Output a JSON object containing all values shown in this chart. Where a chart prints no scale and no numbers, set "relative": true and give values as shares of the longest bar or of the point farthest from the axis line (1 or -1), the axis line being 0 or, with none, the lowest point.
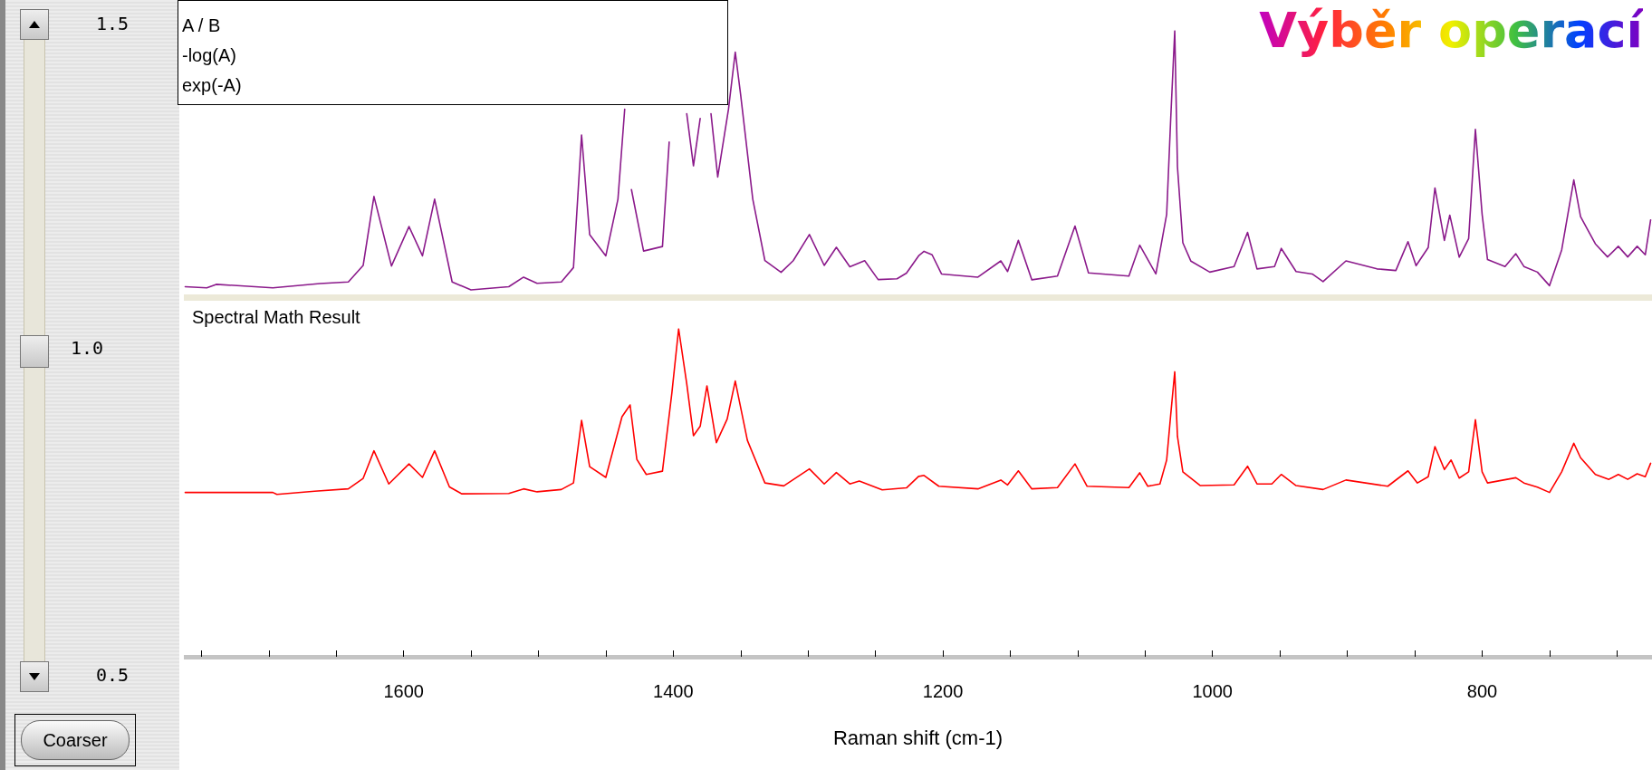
{
  "chart_data": [
    {
      "type": "line",
      "title": "Výběr operací",
      "annotations": [
        "A / B",
        "-log(A)",
        "exp(-A)",
        "1.5",
        "1.0",
        "0.5",
        "Coarser"
      ],
      "relative": true,
      "marker": "none",
      "xlim": [
        1763,
        674
      ],
      "tick_labels": false,
      "series": [
        {
          "color": "#8b1a8b",
          "x": [
            1762,
            1746,
            1739,
            1697,
            1662,
            1641,
            1630,
            1622,
            1609,
            1596,
            1586,
            1577,
            1564,
            1550,
            1522,
            1511,
            1501,
            1483,
            1474,
            1468,
            1462,
            1450,
            1441,
            1436,
            1434,
            1431,
            1422,
            1408,
            1403,
            1400,
            1390,
            1385,
            1380,
            1377,
            1372,
            1367,
            1359,
            1354,
            1350,
            1341,
            1332,
            1320,
            1311,
            1299,
            1288,
            1279,
            1269,
            1258,
            1248,
            1234,
            1227,
            1218,
            1214,
            1208,
            1201,
            1174,
            1157,
            1152,
            1144,
            1134,
            1115,
            1102,
            1092,
            1062,
            1054,
            1042,
            1034,
            1031,
            1028,
            1026,
            1022,
            1016,
            1002,
            984,
            974,
            967,
            954,
            949,
            938,
            926,
            918,
            901,
            878,
            864,
            855,
            849,
            840,
            835,
            828,
            824,
            817,
            810,
            805,
            800,
            796,
            783,
            775,
            769,
            759,
            750,
            741,
            732,
            727,
            716,
            707,
            699,
            692,
            685,
            679,
            675
          ],
          "values": [
            0.039,
            0.035,
            0.048,
            0.035,
            0.051,
            0.057,
            0.119,
            0.378,
            0.117,
            0.265,
            0.155,
            0.368,
            0.057,
            0.027,
            0.039,
            0.075,
            0.052,
            0.057,
            0.111,
            0.609,
            0.235,
            0.155,
            0.368,
            0.706,
            null,
            0.404,
            0.173,
            0.19,
            0.582,
            null,
            0.689,
            0.493,
            0.671,
            null,
            0.689,
            0.451,
            0.706,
            0.92,
            0.76,
            0.368,
            0.137,
            0.093,
            0.137,
            0.235,
            0.119,
            0.187,
            0.114,
            0.137,
            0.066,
            0.069,
            0.09,
            0.155,
            0.172,
            0.159,
            0.087,
            0.075,
            0.136,
            0.096,
            0.213,
            0.065,
            0.079,
            0.267,
            0.091,
            0.079,
            0.195,
            0.087,
            0.311,
            0.669,
            1,
            0.49,
            0.204,
            0.135,
            0.094,
            0.115,
            0.243,
            0.106,
            0.115,
            0.183,
            0.096,
            0.087,
            0.058,
            0.136,
            0.106,
            0.1,
            0.208,
            0.118,
            0.186,
            0.41,
            0.213,
            0.308,
            0.15,
            0.22,
            0.63,
            0.311,
            0.141,
            0.115,
            0.163,
            0.115,
            0.094,
            0.043,
            0.177,
            0.44,
            0.302,
            0.2,
            0.151,
            0.191,
            0.151,
            0.191,
            0.159,
            0.29
          ]
        }
      ]
    },
    {
      "type": "line",
      "title": "Spectral Math Result",
      "xlabel": "Raman shift (cm-1)",
      "relative": true,
      "marker": "none",
      "xlim": [
        1763,
        674
      ],
      "tick_labels": "x",
      "xticks": [
        {
          "value": 1750,
          "label": null
        },
        {
          "value": 1700,
          "label": null
        },
        {
          "value": 1650,
          "label": null
        },
        1600,
        {
          "value": 1550,
          "label": null
        },
        {
          "value": 1500,
          "label": null
        },
        {
          "value": 1450,
          "label": null
        },
        1400,
        {
          "value": 1350,
          "label": null
        },
        {
          "value": 1300,
          "label": null
        },
        {
          "value": 1250,
          "label": null
        },
        1200,
        {
          "value": 1150,
          "label": null
        },
        {
          "value": 1100,
          "label": null
        },
        {
          "value": 1050,
          "label": null
        },
        1000,
        {
          "value": 950,
          "label": null
        },
        {
          "value": 900,
          "label": null
        },
        {
          "value": 850,
          "label": null
        },
        800,
        {
          "value": 750,
          "label": null
        },
        {
          "value": 700,
          "label": null
        }
      ],
      "series": [
        {
          "color": "#ff0000",
          "x": [
            1762,
            1697,
            1694,
            1666,
            1641,
            1630,
            1622,
            1611,
            1596,
            1586,
            1577,
            1566,
            1557,
            1522,
            1511,
            1501,
            1483,
            1474,
            1468,
            1462,
            1450,
            1438,
            1432,
            1427,
            1420,
            1408,
            1401,
            1396,
            1390,
            1385,
            1380,
            1375,
            1368,
            1360,
            1354,
            1345,
            1332,
            1318,
            1299,
            1288,
            1279,
            1269,
            1262,
            1245,
            1227,
            1218,
            1214,
            1203,
            1174,
            1157,
            1152,
            1144,
            1134,
            1115,
            1102,
            1093,
            1062,
            1054,
            1048,
            1039,
            1034,
            1031,
            1028,
            1026,
            1022,
            1009,
            984,
            974,
            967,
            956,
            949,
            938,
            918,
            901,
            870,
            855,
            848,
            840,
            835,
            828,
            823,
            817,
            810,
            805,
            800,
            796,
            775,
            769,
            759,
            750,
            741,
            732,
            727,
            716,
            706,
            699,
            692,
            685,
            679,
            675
          ],
          "values": [
            0.501,
            0.501,
            0.495,
            0.505,
            0.512,
            0.544,
            0.628,
            0.527,
            0.588,
            0.547,
            0.628,
            0.518,
            0.497,
            0.498,
            0.512,
            0.503,
            0.51,
            0.53,
            0.721,
            0.58,
            0.547,
            0.732,
            0.768,
            0.602,
            0.556,
            0.566,
            0.805,
            1,
            0.833,
            0.674,
            0.703,
            0.826,
            0.653,
            0.725,
            0.841,
            0.66,
            0.53,
            0.521,
            0.573,
            0.527,
            0.562,
            0.527,
            0.536,
            0.509,
            0.515,
            0.55,
            0.553,
            0.52,
            0.512,
            0.539,
            0.524,
            0.567,
            0.512,
            0.516,
            0.588,
            0.52,
            0.516,
            0.561,
            0.52,
            0.527,
            0.6,
            0.738,
            0.869,
            0.672,
            0.564,
            0.522,
            0.524,
            0.581,
            0.527,
            0.527,
            0.556,
            0.522,
            0.51,
            0.539,
            0.52,
            0.567,
            0.53,
            0.549,
            0.641,
            0.571,
            0.6,
            0.545,
            0.564,
            0.723,
            0.564,
            0.53,
            0.546,
            0.53,
            0.517,
            0.501,
            0.564,
            0.651,
            0.607,
            0.556,
            0.541,
            0.556,
            0.541,
            0.558,
            0.549,
            0.59
          ]
        }
      ]
    }
  ]
}
